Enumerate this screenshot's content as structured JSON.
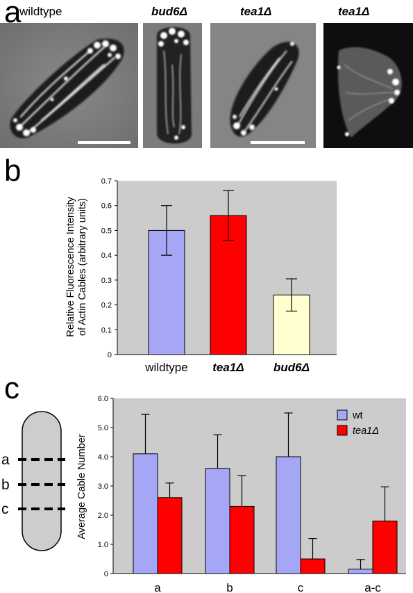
{
  "panel_labels": {
    "a": "a",
    "b": "b",
    "c": "c"
  },
  "micrographs": {
    "labels": [
      "wildtype",
      "bud6Δ",
      "tea1Δ",
      "tea1Δ"
    ]
  },
  "colors": {
    "wildtype": "#a6a6f7",
    "tea1": "#ff0000",
    "bud6": "#ffffd0",
    "plot_bg": "#cccccc",
    "cell_fill": "#cdcdcd"
  },
  "cell_diagram": {
    "labels": [
      "a",
      "b",
      "c"
    ]
  },
  "chart_data": [
    {
      "type": "bar",
      "title": "",
      "xlabel": "",
      "ylabel": "Relative Fluorescence Intensity of Actin Cables (arbitrary units)",
      "ylabel_lines": [
        "Relative Fluorescence Intensity",
        "of Actin Cables (arbitrary units)"
      ],
      "ylim": [
        0,
        0.7
      ],
      "yticks": [
        "0",
        "0.1",
        "0.2",
        "0.3",
        "0.4",
        "0.5",
        "0.6",
        "0.7"
      ],
      "grid": false,
      "categories": [
        "wildtype",
        "tea1Δ",
        "bud6Δ"
      ],
      "category_italic": [
        false,
        true,
        true
      ],
      "values": [
        0.5,
        0.56,
        0.24
      ],
      "errors": [
        0.1,
        0.1,
        0.065
      ]
    },
    {
      "type": "bar",
      "title": "",
      "xlabel": "",
      "ylabel": "Average Cable Number",
      "ylim": [
        0,
        6
      ],
      "yticks": [
        "0",
        "1.0",
        "2.0",
        "3.0",
        "4.0",
        "5.0",
        "6.0"
      ],
      "grid": false,
      "legend_position": "top-right",
      "categories": [
        "a",
        "b",
        "c",
        "a-c"
      ],
      "series": [
        {
          "name": "wt",
          "values": [
            4.1,
            3.6,
            4.0,
            0.15
          ],
          "errors": [
            1.35,
            1.15,
            1.5,
            0.33
          ]
        },
        {
          "name": "tea1Δ",
          "values": [
            2.6,
            2.3,
            0.5,
            1.8
          ],
          "errors": [
            0.5,
            1.05,
            0.7,
            1.17
          ]
        }
      ]
    }
  ]
}
